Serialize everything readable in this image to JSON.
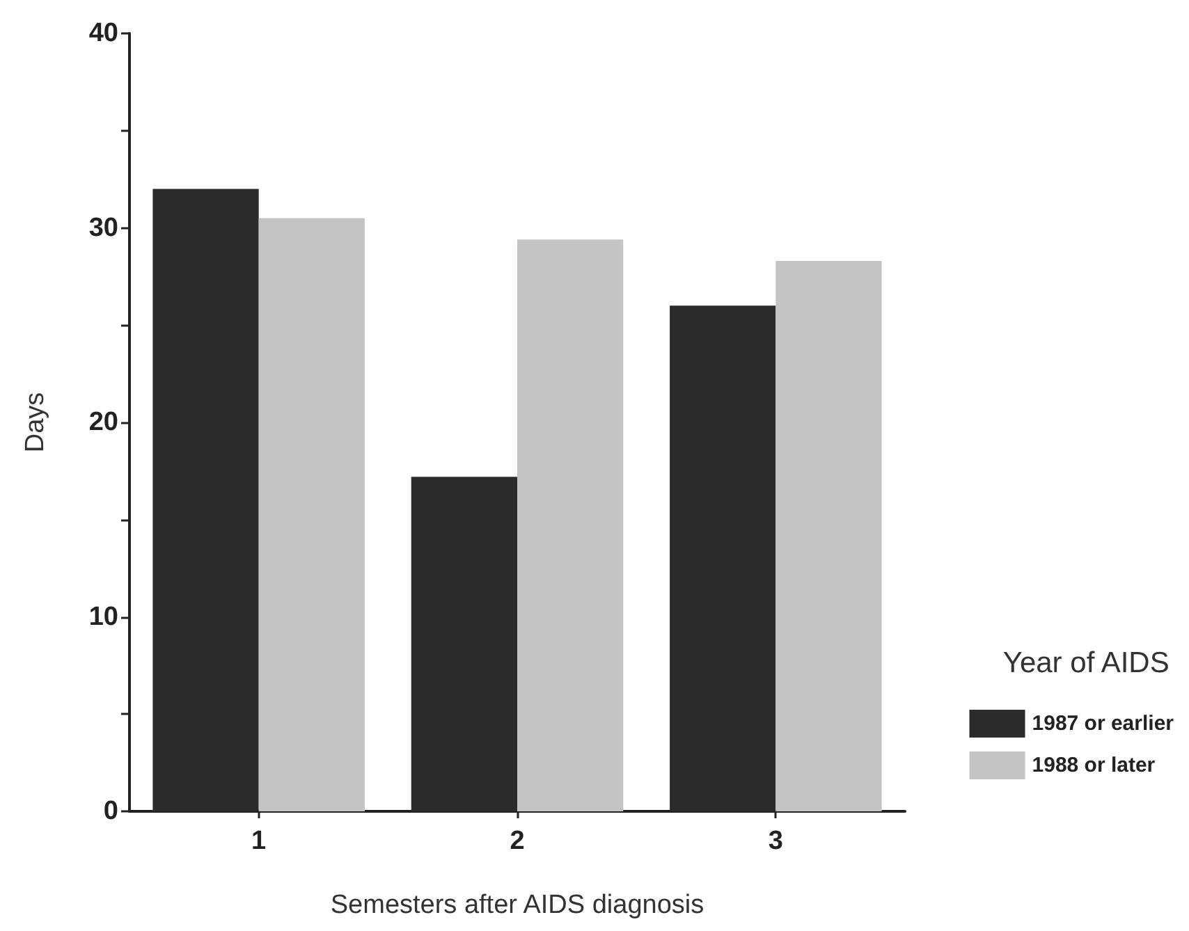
{
  "chart_data": {
    "type": "bar",
    "xlabel": "Semesters after AIDS diagnosis",
    "ylabel": "Days",
    "legend_title": "Year of AIDS",
    "categories": [
      "1",
      "2",
      "3"
    ],
    "series": [
      {
        "name": "1987 or earlier",
        "color": "#2b2b2b",
        "values": [
          32,
          17.2,
          26
        ]
      },
      {
        "name": "1988 or later",
        "color": "#c4c4c4",
        "values": [
          30.5,
          29.4,
          28.3
        ]
      }
    ],
    "ylim": [
      0,
      40
    ],
    "yticks": [
      0,
      {
        "value": 5,
        "label": null
      },
      10,
      {
        "value": 15,
        "label": null
      },
      20,
      {
        "value": 25,
        "label": null
      },
      30,
      {
        "value": 35,
        "label": null
      },
      40
    ],
    "grid": false,
    "legend": "right"
  }
}
